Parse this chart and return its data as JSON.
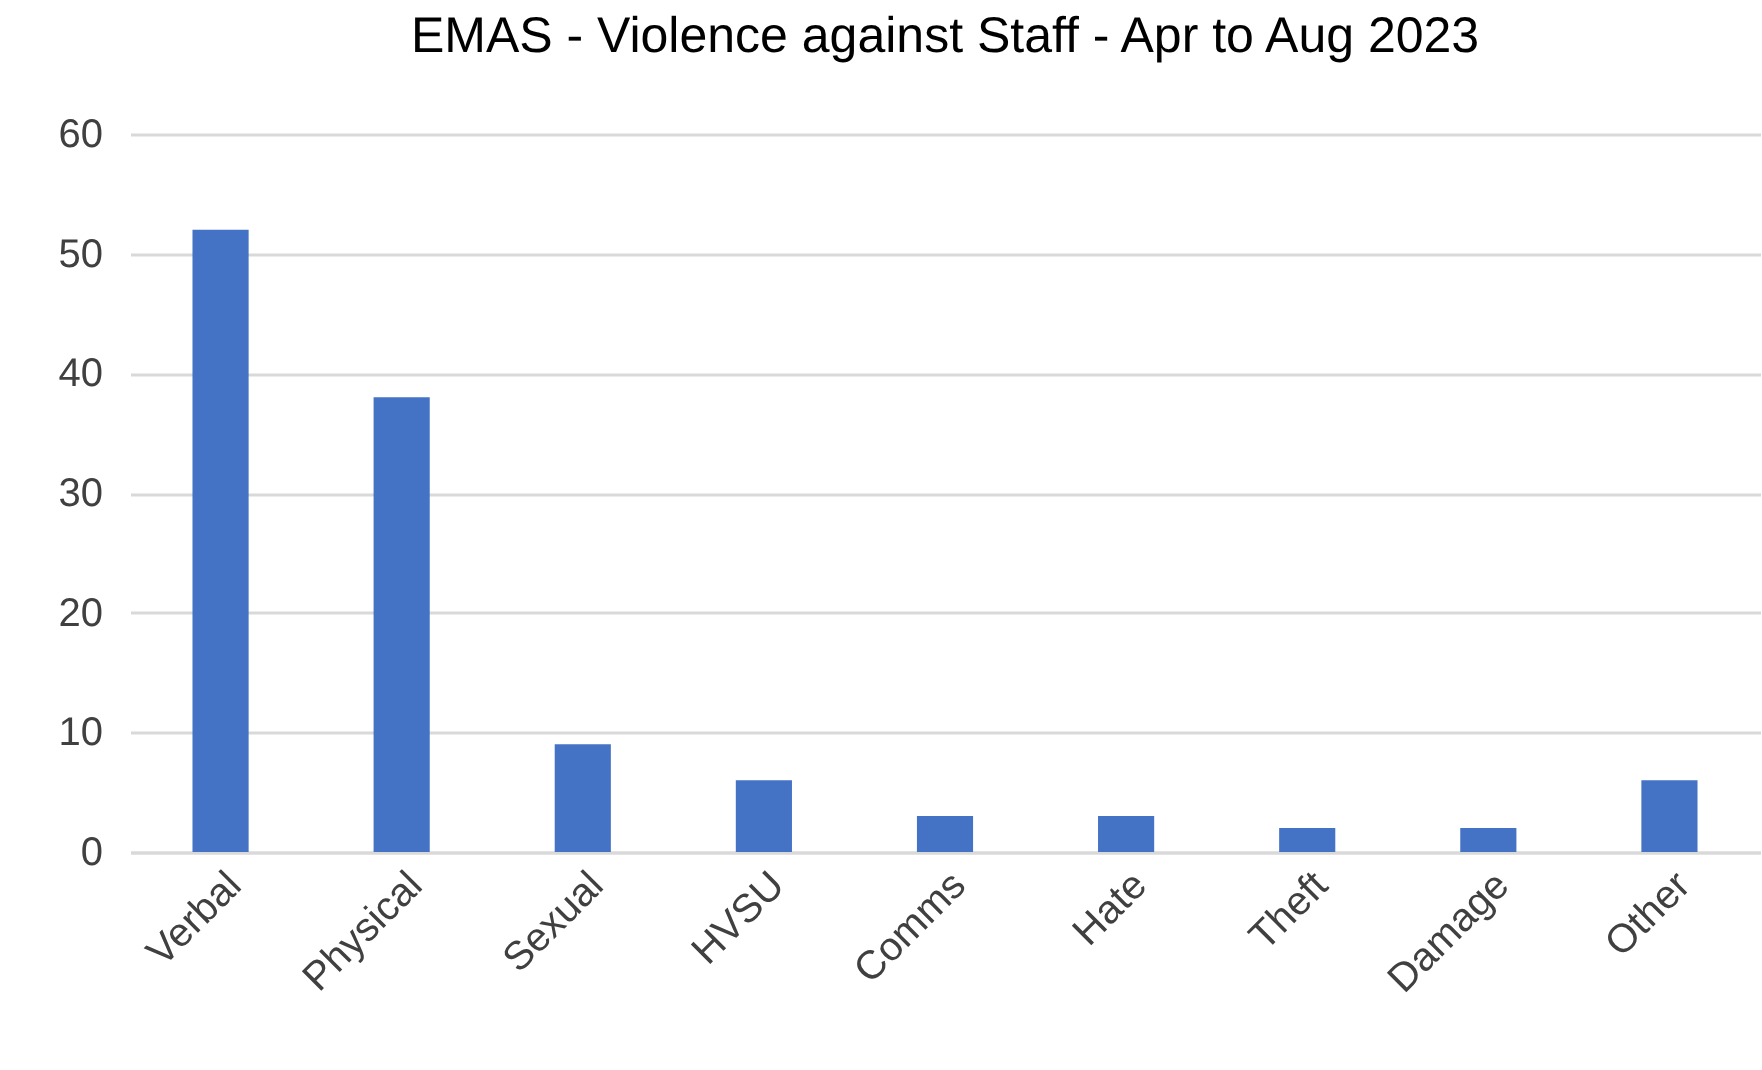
{
  "chart_data": {
    "type": "bar",
    "title": "EMAS - Violence against Staff - Apr to Aug 2023",
    "categories": [
      "Verbal",
      "Physical",
      "Sexual",
      "HVSU",
      "Comms",
      "Hate",
      "Theft",
      "Damage",
      "Other"
    ],
    "values": [
      52,
      38,
      9,
      6,
      3,
      3,
      2,
      2,
      6
    ],
    "color": "#4472c4",
    "ylim": [
      0,
      60
    ],
    "yticks": [
      0,
      10,
      20,
      30,
      40,
      50,
      60
    ],
    "grid": "y"
  }
}
